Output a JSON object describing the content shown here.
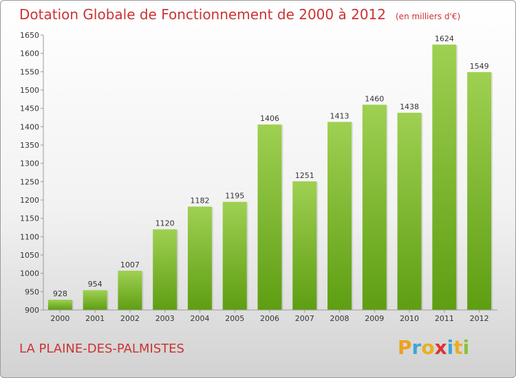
{
  "header": {
    "title": "Dotation Globale de Fonctionnement de 2000 à 2012",
    "unit_note": "(en milliers d'€)"
  },
  "footer": {
    "commune": "LA PLAINE-DES-PALMISTES",
    "logo_text": "Proxiti",
    "logo_colors": [
      "#f0a020",
      "#3da6d8",
      "#e8b020",
      "#dd3333",
      "#3da6d8",
      "#e8b020",
      "#8cc03c"
    ]
  },
  "chart_data": {
    "type": "bar",
    "categories": [
      "2000",
      "2001",
      "2002",
      "2003",
      "2004",
      "2005",
      "2006",
      "2007",
      "2008",
      "2009",
      "2010",
      "2011",
      "2012"
    ],
    "values": [
      928,
      954,
      1007,
      1120,
      1182,
      1195,
      1406,
      1251,
      1413,
      1460,
      1438,
      1624,
      1549
    ],
    "title": "Dotation Globale de Fonctionnement de 2000 à 2012",
    "ylim": [
      900,
      1650
    ],
    "yticks": [
      900,
      950,
      1000,
      1050,
      1100,
      1150,
      1200,
      1250,
      1300,
      1350,
      1400,
      1450,
      1500,
      1550,
      1600,
      1650
    ],
    "grid": false,
    "bar_color_top": "#9fd052",
    "bar_color_bottom": "#5e9e12"
  }
}
